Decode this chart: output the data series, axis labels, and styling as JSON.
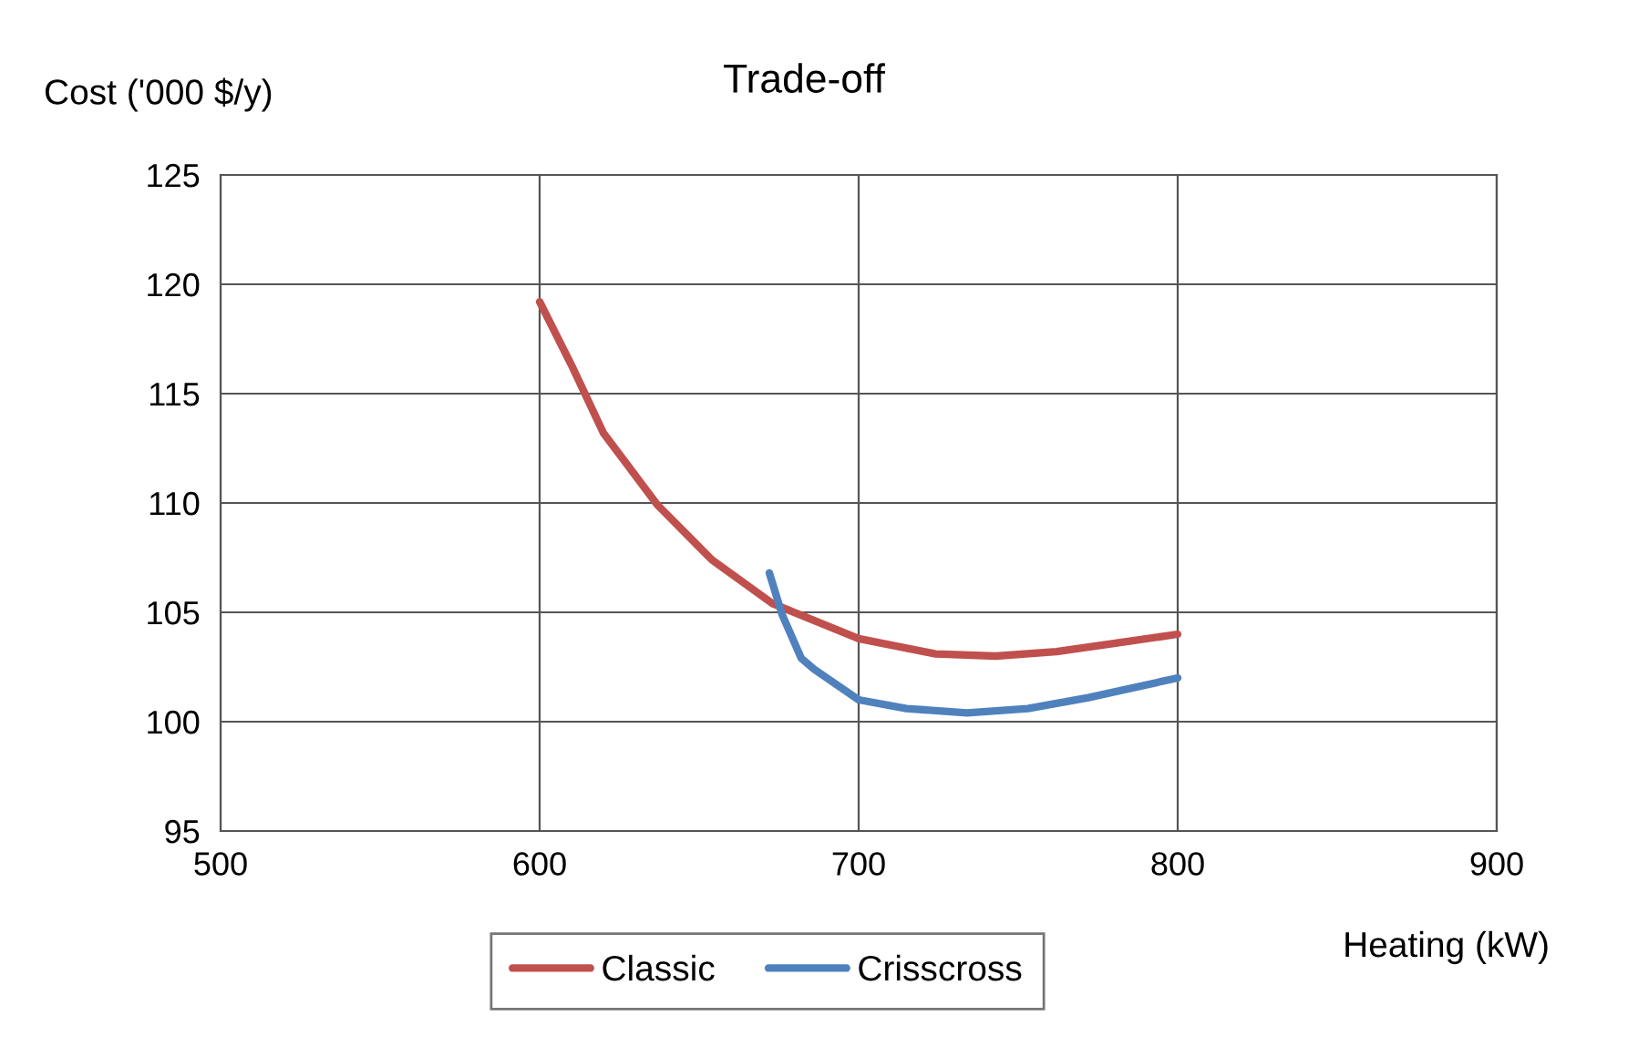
{
  "chart_data": {
    "type": "line",
    "title": "Trade-off",
    "xlabel": "Heating (kW)",
    "ylabel": "Cost ('000 $/y)",
    "xlim": [
      500,
      900
    ],
    "xticks": [
      500,
      600,
      700,
      800,
      900
    ],
    "ylim": [
      95,
      125
    ],
    "yticks": [
      95,
      100,
      105,
      110,
      115,
      120,
      125
    ],
    "grid": true,
    "legend": "bottom",
    "marker": "none",
    "line_style": "solid",
    "series": [
      {
        "name": "Classic",
        "color": "#c0504d",
        "x": [
          600,
          610,
          620,
          637,
          654,
          673,
          700,
          724,
          743,
          762,
          781,
          800
        ],
        "values": [
          119.2,
          116.3,
          113.2,
          109.9,
          107.4,
          105.4,
          103.8,
          103.1,
          103.0,
          103.2,
          103.6,
          104.0
        ]
      },
      {
        "name": "Crisscross",
        "color": "#4f81bd",
        "x": [
          672,
          676,
          682,
          686,
          700,
          715,
          734,
          753,
          772,
          800
        ],
        "values": [
          106.8,
          104.9,
          102.9,
          102.4,
          101.0,
          100.6,
          100.4,
          100.6,
          101.1,
          102.0
        ]
      }
    ]
  }
}
